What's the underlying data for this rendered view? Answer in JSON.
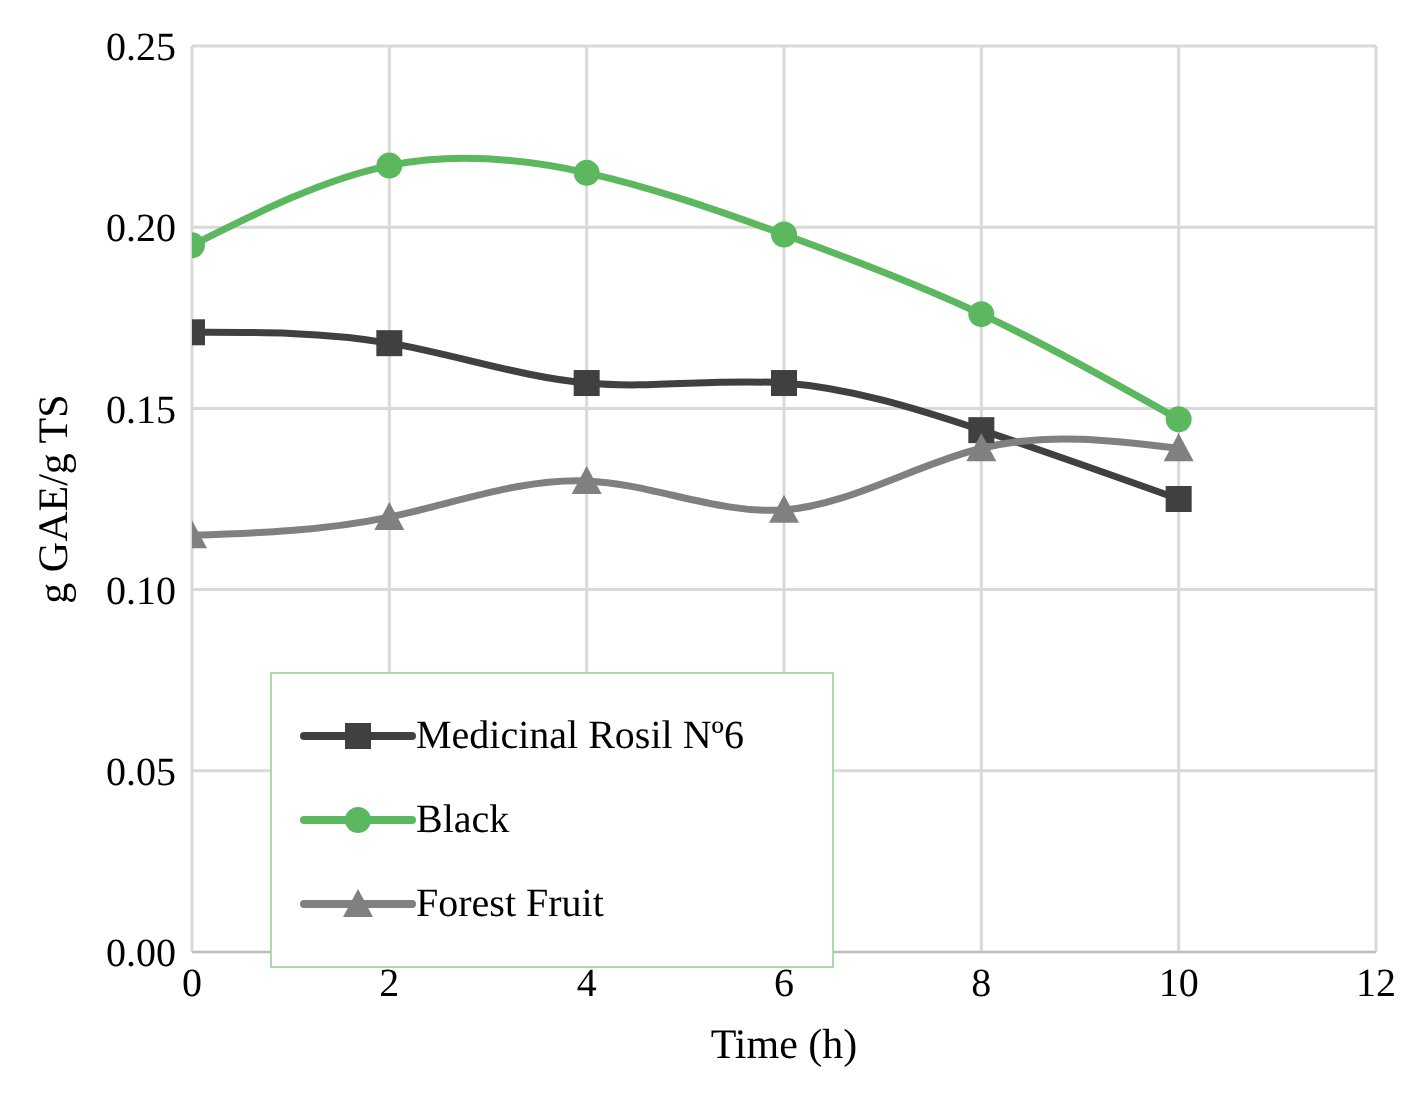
{
  "chart_data": {
    "type": "line",
    "xlabel": "Time (h)",
    "ylabel": "g GAE/g TS",
    "x": [
      0,
      2,
      4,
      6,
      8,
      10
    ],
    "xlim": [
      0,
      12
    ],
    "xticks": [
      0,
      2,
      4,
      6,
      8,
      10,
      12
    ],
    "ylim": [
      0,
      0.25
    ],
    "yticks": [
      {
        "value": 0,
        "label": "0.00"
      },
      {
        "value": 0.05,
        "label": "0.05"
      },
      {
        "value": 0.1,
        "label": "0.10"
      },
      {
        "value": 0.15,
        "label": "0.15"
      },
      {
        "value": 0.2,
        "label": "0.20"
      },
      {
        "value": 0.25,
        "label": "0.25"
      }
    ],
    "grid": true,
    "legend": "bottom left",
    "line_style": "solid",
    "series": [
      {
        "name": "Medicinal Rosil Nº6",
        "color": "#404040",
        "marker": "square",
        "values": [
          0.171,
          0.168,
          0.157,
          0.157,
          0.144,
          0.125
        ]
      },
      {
        "name": "Black",
        "color": "#5cb85f",
        "marker": "circle",
        "values": [
          0.195,
          0.217,
          0.215,
          0.198,
          0.176,
          0.147
        ]
      },
      {
        "name": "Forest Fruit",
        "color": "#808080",
        "marker": "triangle",
        "values": [
          0.115,
          0.12,
          0.13,
          0.122,
          0.139,
          0.139
        ]
      }
    ]
  }
}
